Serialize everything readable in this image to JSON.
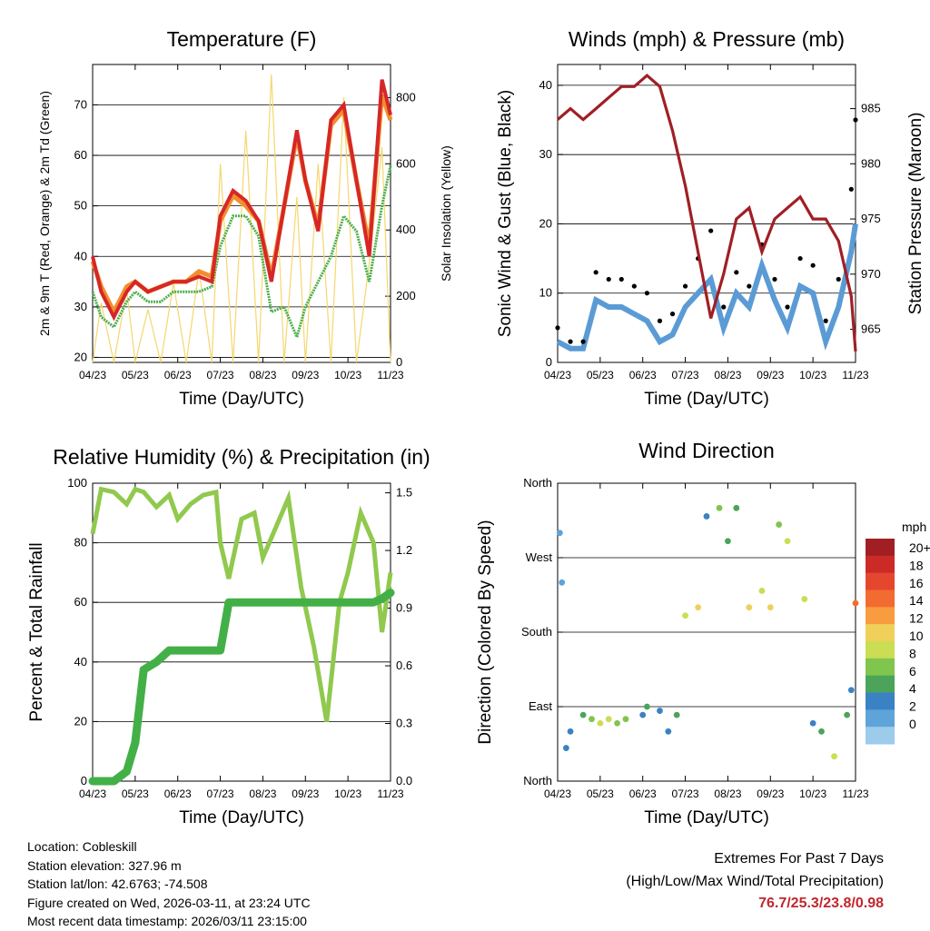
{
  "x_ticks": [
    "04/23",
    "05/23",
    "06/23",
    "07/23",
    "08/23",
    "09/23",
    "10/23",
    "11/23"
  ],
  "x_label": "Time (Day/UTC)",
  "colors": {
    "temp_2m": "#d62728",
    "temp_9m": "#f28e2b",
    "dewpoint": "#4daf4a",
    "solar": "#f5d76e",
    "wind": "#5b9bd5",
    "gust": "#000000",
    "pressure": "#a01f24",
    "rh": "#90c94d",
    "precip": "#43b047",
    "extremes": "#c0272d"
  },
  "info": {
    "location": "Location: Cobleskill",
    "elevation": "Station elevation: 327.96 m",
    "latlon": "Station lat/lon: 42.6763; -74.508",
    "created": "Figure created on Wed, 2026-03-11, at 23:24 UTC",
    "recent": "Most recent data timestamp: 2026/03/11 23:15:00"
  },
  "extremes": {
    "title": "Extremes For Past 7 Days",
    "subtitle": "(High/Low/Max Wind/Total Precipitation)",
    "values": "76.7/25.3/23.8/0.98"
  },
  "chart_data": [
    {
      "type": "line",
      "title": "Temperature (F)",
      "xlabel": "Time (Day/UTC)",
      "ylabel": "2m & 9m T (Red, Orange) & 2m Td (Green)",
      "ylabel_right": "Solar Insolation (Yellow)",
      "ylim": [
        19,
        78
      ],
      "yticks": [
        20,
        30,
        40,
        50,
        60,
        70
      ],
      "ylim_right": [
        0,
        900
      ],
      "yticks_right": [
        0,
        200,
        400,
        600,
        800
      ],
      "x": [
        0,
        0.2,
        0.5,
        0.8,
        1,
        1.3,
        1.6,
        1.9,
        2.2,
        2.5,
        2.8,
        3,
        3.3,
        3.6,
        3.9,
        4.2,
        4.5,
        4.8,
        5,
        5.3,
        5.6,
        5.9,
        6.2,
        6.5,
        6.8,
        7
      ],
      "series": [
        {
          "name": "2m T",
          "values": [
            40,
            33,
            28,
            33,
            35,
            33,
            34,
            35,
            35,
            36,
            35,
            48,
            53,
            51,
            47,
            35,
            50,
            65,
            55,
            45,
            67,
            70,
            55,
            40,
            75,
            68
          ]
        },
        {
          "name": "9m T",
          "values": [
            39,
            34,
            29,
            34,
            35,
            33,
            34,
            35,
            35,
            37,
            36,
            47,
            52,
            50,
            47,
            36,
            50,
            64,
            55,
            46,
            66,
            69,
            55,
            42,
            72,
            67
          ]
        },
        {
          "name": "2m Td",
          "values": [
            33,
            28,
            26,
            31,
            33,
            31,
            31,
            33,
            33,
            33,
            34,
            42,
            48,
            48,
            44,
            29,
            30,
            24,
            30,
            35,
            40,
            48,
            45,
            35,
            50,
            58
          ]
        },
        {
          "name": "Solar",
          "values": [
            0,
            180,
            0,
            220,
            0,
            160,
            0,
            240,
            0,
            280,
            0,
            600,
            0,
            700,
            0,
            870,
            0,
            500,
            0,
            600,
            0,
            800,
            0,
            300,
            650,
            0
          ]
        }
      ]
    },
    {
      "type": "scatter",
      "title": "Winds (mph) & Pressure (mb)",
      "xlabel": "Time (Day/UTC)",
      "ylabel": "Sonic Wind & Gust (Blue, Black)",
      "ylabel_right": "Station Pressure (Maroon)",
      "ylim": [
        0,
        43
      ],
      "yticks": [
        0,
        10,
        20,
        30,
        40
      ],
      "ylim_right": [
        962,
        989
      ],
      "yticks_right": [
        965,
        970,
        975,
        980,
        985
      ],
      "x": [
        0,
        0.3,
        0.6,
        0.9,
        1.2,
        1.5,
        1.8,
        2.1,
        2.4,
        2.7,
        3,
        3.3,
        3.6,
        3.9,
        4.2,
        4.5,
        4.8,
        5.1,
        5.4,
        5.7,
        6,
        6.3,
        6.6,
        6.9,
        7
      ],
      "series": [
        {
          "name": "Wind",
          "values": [
            3,
            2,
            2,
            9,
            8,
            8,
            7,
            6,
            3,
            4,
            8,
            10,
            12,
            5,
            10,
            8,
            14,
            9,
            5,
            11,
            10,
            3,
            8,
            16,
            20
          ]
        },
        {
          "name": "Gust",
          "values": [
            5,
            3,
            3,
            13,
            12,
            12,
            11,
            10,
            6,
            7,
            11,
            15,
            19,
            8,
            13,
            11,
            17,
            12,
            8,
            15,
            14,
            6,
            12,
            25,
            35
          ]
        },
        {
          "name": "Pressure",
          "values": [
            984,
            985,
            984,
            985,
            986,
            987,
            987,
            988,
            987,
            983,
            978,
            972,
            966,
            970,
            975,
            976,
            972,
            975,
            976,
            977,
            975,
            975,
            973,
            968,
            963
          ]
        }
      ]
    },
    {
      "type": "line",
      "title": "Relative Humidity (%) & Precipitation (in)",
      "xlabel": "Time (Day/UTC)",
      "ylabel": "Percent & Total Rainfall",
      "ylim": [
        0,
        100
      ],
      "yticks": [
        0,
        20,
        40,
        60,
        80,
        100
      ],
      "ylim_right": [
        0,
        1.55
      ],
      "yticks_right": [
        "0.0",
        "0.3",
        "0.6",
        "0.9",
        "1.2",
        "1.5"
      ],
      "x": [
        0,
        0.2,
        0.5,
        0.8,
        1,
        1.2,
        1.5,
        1.8,
        2,
        2.3,
        2.6,
        2.9,
        3,
        3.2,
        3.5,
        3.8,
        4,
        4.3,
        4.6,
        4.9,
        5.2,
        5.5,
        5.8,
        6,
        6.3,
        6.6,
        6.8,
        7
      ],
      "series": [
        {
          "name": "RH",
          "values": [
            83,
            98,
            97,
            93,
            98,
            97,
            92,
            96,
            88,
            93,
            96,
            97,
            80,
            68,
            88,
            90,
            75,
            85,
            95,
            65,
            45,
            20,
            60,
            70,
            90,
            80,
            50,
            70
          ]
        },
        {
          "name": "Precip",
          "values": [
            0,
            0,
            0,
            0.05,
            0.2,
            0.58,
            0.62,
            0.68,
            0.68,
            0.68,
            0.68,
            0.68,
            0.68,
            0.93,
            0.93,
            0.93,
            0.93,
            0.93,
            0.93,
            0.93,
            0.93,
            0.93,
            0.93,
            0.93,
            0.93,
            0.93,
            0.95,
            0.98
          ]
        }
      ]
    },
    {
      "type": "scatter",
      "title": "Wind Direction",
      "xlabel": "Time (Day/UTC)",
      "ylabel": "Direction (Colored By Speed)",
      "yticks": [
        "North",
        "East",
        "South",
        "West",
        "North"
      ],
      "ylim": [
        0,
        360
      ],
      "colorbar_title": "mph",
      "colorbar_labels": [
        "20+",
        "18",
        "16",
        "14",
        "12",
        "10",
        "8",
        "6",
        "4",
        "2",
        "0"
      ],
      "colorbar_colors": [
        "#a11f24",
        "#cc2a27",
        "#e4472d",
        "#f26b30",
        "#f89c3f",
        "#f0d05a",
        "#cbdd53",
        "#7fc54e",
        "#4ba45a",
        "#3a82c4",
        "#5ea4d9",
        "#9ccbec"
      ],
      "x": [
        0.05,
        0.1,
        0.2,
        0.3,
        0.6,
        0.8,
        1,
        1.2,
        1.4,
        1.6,
        2,
        2.1,
        2.4,
        2.6,
        2.8,
        3,
        3.3,
        3.5,
        3.8,
        4,
        4.2,
        4.5,
        4.8,
        5,
        5.2,
        5.4,
        5.8,
        6,
        6.2,
        6.5,
        6.8,
        6.9,
        7
      ],
      "directions": [
        300,
        240,
        40,
        60,
        80,
        75,
        70,
        75,
        70,
        75,
        80,
        90,
        85,
        60,
        80,
        200,
        210,
        320,
        330,
        290,
        330,
        210,
        230,
        210,
        310,
        290,
        220,
        70,
        60,
        30,
        80,
        110,
        215
      ],
      "speeds": [
        2,
        1,
        3,
        4,
        6,
        8,
        9,
        10,
        8,
        7,
        4,
        5,
        4,
        4,
        6,
        10,
        12,
        4,
        8,
        5,
        6,
        12,
        9,
        11,
        7,
        10,
        9,
        3,
        5,
        9,
        6,
        4,
        16
      ]
    }
  ]
}
